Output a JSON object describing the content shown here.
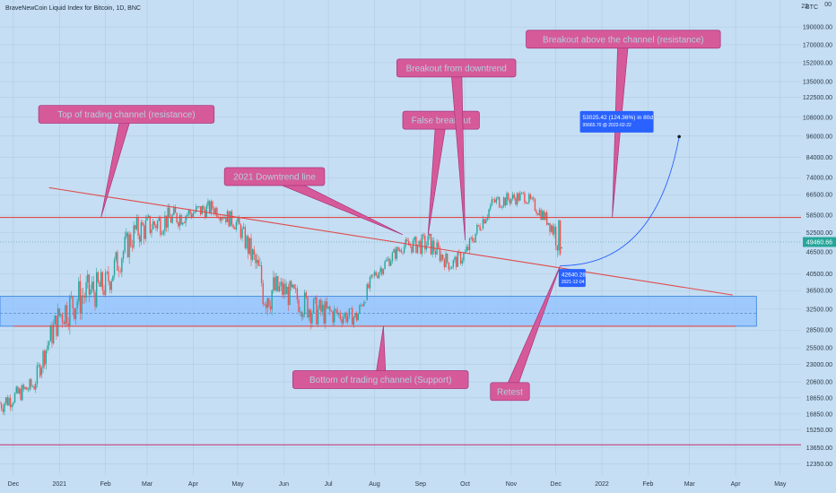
{
  "chart_data": {
    "type": "candlestick",
    "title": "BraveNewCoin Liquid Index for Bitcoin, 1D, BNC",
    "currency": "BTC",
    "y_scale": "log",
    "ylim": [
      11500,
      225000
    ],
    "xlim": [
      "2020-11-22",
      "2022-05-15"
    ],
    "grid": true,
    "x_ticks": [
      {
        "date": "2020-12-01",
        "label": "Dec"
      },
      {
        "date": "2021-01-01",
        "label": "2021"
      },
      {
        "date": "2021-02-01",
        "label": "Feb"
      },
      {
        "date": "2021-03-01",
        "label": "Mar"
      },
      {
        "date": "2021-04-01",
        "label": "Apr"
      },
      {
        "date": "2021-05-01",
        "label": "May"
      },
      {
        "date": "2021-06-01",
        "label": "Jun"
      },
      {
        "date": "2021-07-01",
        "label": "Jul"
      },
      {
        "date": "2021-08-01",
        "label": "Aug"
      },
      {
        "date": "2021-09-01",
        "label": "Sep"
      },
      {
        "date": "2021-10-01",
        "label": "Oct"
      },
      {
        "date": "2021-11-01",
        "label": "Nov"
      },
      {
        "date": "2021-12-01",
        "label": "Dec"
      },
      {
        "date": "2022-01-01",
        "label": "2022"
      },
      {
        "date": "2022-02-01",
        "label": "Feb"
      },
      {
        "date": "2022-03-01",
        "label": "Mar"
      },
      {
        "date": "2022-04-01",
        "label": "Apr"
      },
      {
        "date": "2022-05-01",
        "label": "May"
      }
    ],
    "y_ticks": [
      {
        "value": 12350,
        "label": "12350.00"
      },
      {
        "value": 13650,
        "label": "13650.00"
      },
      {
        "value": 15250,
        "label": "15250.00"
      },
      {
        "value": 16850,
        "label": "16850.00"
      },
      {
        "value": 18650,
        "label": "18650.00"
      },
      {
        "value": 20600,
        "label": "20600.00"
      },
      {
        "value": 23000,
        "label": "23000.00"
      },
      {
        "value": 25500,
        "label": "25500.00"
      },
      {
        "value": 28500,
        "label": "28500.00"
      },
      {
        "value": 32500,
        "label": "32500.00"
      },
      {
        "value": 36500,
        "label": "36500.00"
      },
      {
        "value": 40500,
        "label": "40500.00"
      },
      {
        "value": 46500,
        "label": "46500.00"
      },
      {
        "value": 52500,
        "label": "52500.00"
      },
      {
        "value": 58500,
        "label": "58500.00"
      },
      {
        "value": 66500,
        "label": "66500.00"
      },
      {
        "value": 74000,
        "label": "74000.00"
      },
      {
        "value": 84000,
        "label": "84000.00"
      },
      {
        "value": 96000,
        "label": "96000.00"
      },
      {
        "value": 108000,
        "label": "108000.00"
      },
      {
        "value": 122500,
        "label": "122500.00"
      },
      {
        "value": 135000,
        "label": "135000.00"
      },
      {
        "value": 152000,
        "label": "152000.00"
      },
      {
        "value": 170000,
        "label": "170000.00"
      },
      {
        "value": 190000,
        "label": "190000.00"
      }
    ],
    "y_edge_labels": [
      "22",
      "00"
    ],
    "last_price": {
      "value": 49460.66,
      "label": "49460.66",
      "color": "#26a69a"
    },
    "price_path_monthly": [
      {
        "date": "2020-11-22",
        "low": 16500,
        "high": 19500
      },
      {
        "date": "2020-12-01",
        "low": 17600,
        "high": 19900
      },
      {
        "date": "2020-12-15",
        "low": 19000,
        "high": 21500
      },
      {
        "date": "2021-01-01",
        "low": 27700,
        "high": 34800
      },
      {
        "date": "2021-01-15",
        "low": 30000,
        "high": 40500
      },
      {
        "date": "2021-02-01",
        "low": 33500,
        "high": 42000
      },
      {
        "date": "2021-02-21",
        "low": 47000,
        "high": 58400
      },
      {
        "date": "2021-03-13",
        "low": 52000,
        "high": 61700
      },
      {
        "date": "2021-04-14",
        "low": 58000,
        "high": 64800
      },
      {
        "date": "2021-05-01",
        "low": 52000,
        "high": 58500
      },
      {
        "date": "2021-05-19",
        "low": 30000,
        "high": 43000
      },
      {
        "date": "2021-06-01",
        "low": 33000,
        "high": 40000
      },
      {
        "date": "2021-06-22",
        "low": 28800,
        "high": 35500
      },
      {
        "date": "2021-07-20",
        "low": 29300,
        "high": 32500
      },
      {
        "date": "2021-08-01",
        "low": 38000,
        "high": 42500
      },
      {
        "date": "2021-08-20",
        "low": 46000,
        "high": 50500
      },
      {
        "date": "2021-09-07",
        "low": 45000,
        "high": 52900
      },
      {
        "date": "2021-09-21",
        "low": 40700,
        "high": 45000
      },
      {
        "date": "2021-10-01",
        "low": 43000,
        "high": 48500
      },
      {
        "date": "2021-10-20",
        "low": 60000,
        "high": 67000
      },
      {
        "date": "2021-11-10",
        "low": 63000,
        "high": 69000
      },
      {
        "date": "2021-11-26",
        "low": 53500,
        "high": 59000
      },
      {
        "date": "2021-12-04",
        "low": 42640.28,
        "high": 57500
      },
      {
        "date": "2021-12-05",
        "low": 47500,
        "high": 49460.66
      }
    ],
    "lines": [
      {
        "name": "resistance",
        "color": "#e04a4a",
        "points": [
          {
            "date": "2020-11-22",
            "value": 57700
          },
          {
            "date": "2022-05-15",
            "value": 57700
          }
        ]
      },
      {
        "name": "support",
        "color": "#e04a4a",
        "points": [
          {
            "date": "2020-12-01",
            "value": 29200
          },
          {
            "date": "2022-04-01",
            "value": 29200
          }
        ]
      },
      {
        "name": "bottom",
        "color": "#c2185b",
        "points": [
          {
            "date": "2020-11-22",
            "value": 13900
          },
          {
            "date": "2022-05-15",
            "value": 13900
          }
        ]
      },
      {
        "name": "downtrend",
        "color": "#e04a4a",
        "points": [
          {
            "date": "2020-12-25",
            "value": 69500
          },
          {
            "date": "2022-03-30",
            "value": 35500
          }
        ]
      },
      {
        "name": "projection",
        "color": "#2962ff",
        "curve": true,
        "points": [
          {
            "date": "2021-12-04",
            "value": 42640.28
          },
          {
            "date": "2022-02-22",
            "value": 95665.7
          }
        ]
      }
    ],
    "zones": [
      {
        "name": "channel-support-zone",
        "color": "#90c2ff",
        "from": 29200,
        "to": 35200,
        "date_from": "2020-11-22",
        "date_to": "2022-04-15",
        "midline": 31700
      }
    ],
    "annotations": [
      {
        "text": "Top of trading channel (resistance)",
        "anchor_date": "2020-12-18",
        "anchor_value": 110000,
        "target_date": "2021-01-29",
        "target_value": 57700
      },
      {
        "text": "2021 Downtrend line",
        "anchor_date": "2021-04-22",
        "anchor_value": 74500,
        "target_date": "2021-08-20",
        "target_value": 51800
      },
      {
        "text": "False breakout",
        "anchor_date": "2021-08-20",
        "anchor_value": 106000,
        "target_date": "2021-09-06",
        "target_value": 51500
      },
      {
        "text": "Breakout from downtrend",
        "anchor_date": "2021-08-16",
        "anchor_value": 147000,
        "target_date": "2021-10-01",
        "target_value": 50000
      },
      {
        "text": "Breakout above the channel (resistance)",
        "anchor_date": "2021-11-11",
        "anchor_value": 176000,
        "target_date": "2022-01-08",
        "target_value": 57700
      },
      {
        "text": "Bottom of trading channel (Support)",
        "anchor_date": "2021-06-07",
        "anchor_value": 20900,
        "target_date": "2021-08-07",
        "target_value": 29200
      },
      {
        "text": "Retest",
        "anchor_date": "2021-10-18",
        "anchor_value": 19400,
        "target_date": "2021-12-04",
        "target_value": 42640.28
      }
    ],
    "measure_labels": [
      {
        "line1": "53025.42 (124.36%) in 80d",
        "line2": "95665.70 @ 2022-02-22",
        "date": "2022-01-11",
        "value": 105000
      },
      {
        "line1": "42640.28",
        "line2": "2021-12-04",
        "date": "2021-12-12",
        "value": 39500
      }
    ]
  }
}
